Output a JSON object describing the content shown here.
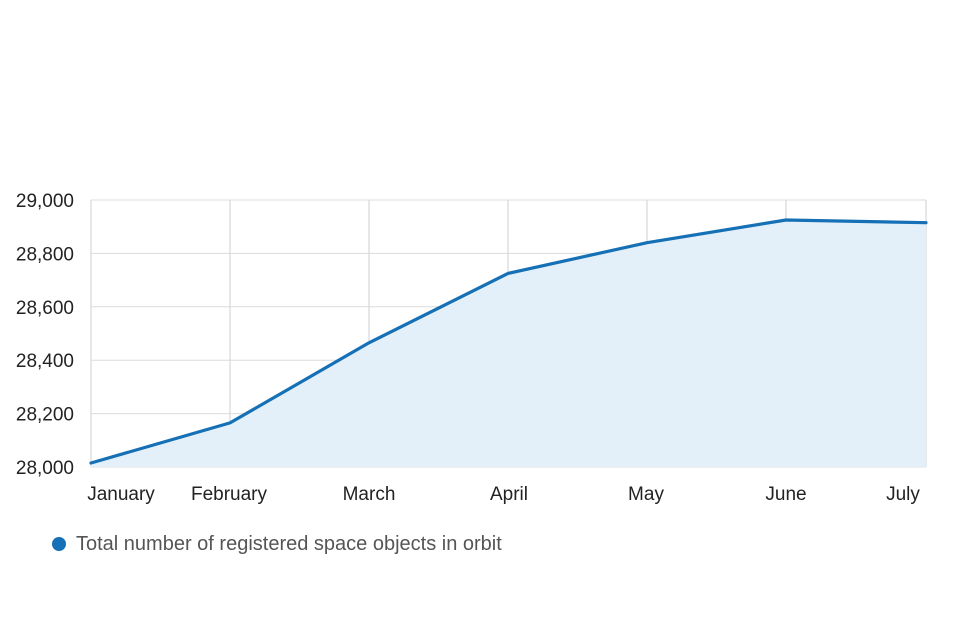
{
  "chart_data": {
    "type": "area",
    "title": "",
    "xlabel": "",
    "ylabel": "",
    "categories": [
      "January",
      "February",
      "March",
      "April",
      "May",
      "June",
      "July"
    ],
    "yticks": [
      "28,000",
      "28,200",
      "28,400",
      "28,600",
      "28,800",
      "29,000"
    ],
    "ylim": [
      28000,
      29000
    ],
    "grid": true,
    "legend_position": "bottom-left",
    "series": [
      {
        "name": "Total number of registered space objects in orbit",
        "values": [
          28015,
          28165,
          28465,
          28725,
          28840,
          28925,
          28915
        ],
        "line_color": "#1570b5",
        "fill_color": "#e4f0f9"
      }
    ]
  },
  "legend": {
    "items": [
      {
        "label": "Total number of registered space objects in orbit",
        "color": "#1570b5"
      }
    ]
  }
}
